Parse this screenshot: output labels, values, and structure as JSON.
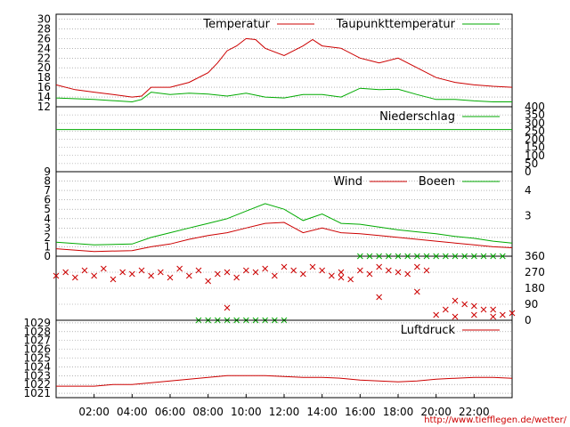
{
  "footer": {
    "url": "http://www.tiefflegen.de/wetter/"
  },
  "colors": {
    "red": "#cc0000",
    "green": "#00aa00",
    "grid": "#888888"
  },
  "chart_data": [
    {
      "id": "temperature",
      "type": "line",
      "ylim": [
        12,
        31
      ],
      "y_ticks": [
        "30",
        "28",
        "26",
        "24",
        "22",
        "20",
        "18",
        "16",
        "14",
        "12"
      ],
      "y_tick_values": [
        30,
        28,
        26,
        24,
        22,
        20,
        18,
        16,
        14,
        12
      ],
      "legend": [
        {
          "label": "Temperatur",
          "color": "#cc0000"
        },
        {
          "label": "Taupunkttemperatur",
          "color": "#00aa00"
        }
      ],
      "series": [
        {
          "name": "Temperatur",
          "color": "#cc0000",
          "x": [
            0,
            1,
            2,
            3,
            4,
            4.5,
            5,
            6,
            7,
            8,
            8.5,
            9,
            9.5,
            10,
            10.5,
            11,
            12,
            13,
            13.5,
            14,
            15,
            16,
            16.5,
            17,
            18,
            19,
            20,
            21,
            22,
            23,
            24
          ],
          "y": [
            16.5,
            15.5,
            15,
            14.5,
            14,
            14.2,
            16,
            16,
            17,
            19,
            21,
            23.5,
            24.5,
            26,
            25.8,
            24,
            22.5,
            24.5,
            25.8,
            24.5,
            24,
            22,
            21.5,
            21,
            22,
            20,
            18,
            17,
            16.5,
            16.2,
            16
          ]
        },
        {
          "name": "Taupunkttemperatur",
          "color": "#00aa00",
          "x": [
            0,
            2,
            4,
            4.5,
            5,
            6,
            7,
            8,
            9,
            10,
            11,
            12,
            13,
            14,
            15,
            16,
            17,
            18,
            19,
            20,
            21,
            22,
            23,
            24
          ],
          "y": [
            13.8,
            13.5,
            13,
            13.5,
            15,
            14.5,
            14.8,
            14.6,
            14.2,
            14.8,
            14,
            13.8,
            14.5,
            14.5,
            14,
            15.8,
            15.5,
            15.6,
            14.5,
            13.5,
            13.5,
            13.2,
            13,
            13
          ]
        }
      ]
    },
    {
      "id": "precipitation",
      "type": "line",
      "ylim": [
        0,
        400
      ],
      "y_ticks_right": [
        "400",
        "350",
        "300",
        "250",
        "200",
        "150",
        "100",
        "50",
        "0"
      ],
      "y_tick_values": [
        400,
        350,
        300,
        250,
        200,
        150,
        100,
        50,
        0
      ],
      "legend": [
        {
          "label": "Niederschlag",
          "color": "#00aa00"
        }
      ],
      "series": [
        {
          "name": "Niederschlag",
          "color": "#00aa00",
          "x": [
            0,
            24
          ],
          "y": [
            260,
            260
          ]
        }
      ]
    },
    {
      "id": "wind",
      "type": "line",
      "ylim": [
        0,
        9
      ],
      "y_ticks": [
        "9",
        "8",
        "7",
        "6",
        "5",
        "4",
        "3",
        "2",
        "1",
        "0"
      ],
      "y_tick_values": [
        9,
        8,
        7,
        6,
        5,
        4,
        3,
        2,
        1,
        0
      ],
      "y_ticks_right": [
        "4",
        "3"
      ],
      "y_tick_right_values": [
        7,
        4.3
      ],
      "legend": [
        {
          "label": "Wind",
          "color": "#cc0000"
        },
        {
          "label": "Boeen",
          "color": "#00aa00"
        }
      ],
      "series": [
        {
          "name": "Wind",
          "color": "#cc0000",
          "x": [
            0,
            2,
            4,
            5,
            6,
            7,
            8,
            9,
            10,
            11,
            12,
            13,
            14,
            15,
            16,
            17,
            18,
            19,
            20,
            21,
            22,
            23,
            24
          ],
          "y": [
            0.8,
            0.5,
            0.6,
            1,
            1.3,
            1.8,
            2.2,
            2.5,
            3,
            3.5,
            3.6,
            2.5,
            3,
            2.5,
            2.4,
            2.2,
            2,
            1.8,
            1.6,
            1.4,
            1.2,
            1,
            0.9
          ]
        },
        {
          "name": "Boeen",
          "color": "#00aa00",
          "x": [
            0,
            2,
            4,
            5,
            6,
            7,
            8,
            9,
            10,
            11,
            12,
            13,
            14,
            15,
            16,
            17,
            18,
            19,
            20,
            21,
            22,
            23,
            24
          ],
          "y": [
            1.5,
            1.2,
            1.3,
            2,
            2.5,
            3,
            3.5,
            4,
            4.8,
            5.6,
            5,
            3.8,
            4.5,
            3.5,
            3.4,
            3.1,
            2.8,
            2.6,
            2.4,
            2.1,
            1.9,
            1.6,
            1.4
          ]
        }
      ]
    },
    {
      "id": "wind-direction",
      "type": "scatter",
      "ylim": [
        0,
        360
      ],
      "y_ticks_right": [
        "360",
        "270",
        "180",
        "90",
        "0"
      ],
      "y_tick_values": [
        360,
        270,
        180,
        90,
        0
      ],
      "series": [
        {
          "name": "",
          "color": "#cc0000",
          "x": [
            0,
            0.5,
            1,
            1.5,
            2,
            2.5,
            3,
            3.5,
            4,
            4.5,
            5,
            5.5,
            6,
            6.5,
            7,
            7.5,
            8,
            8.5,
            9,
            9.5,
            10,
            10.5,
            11,
            11.5,
            12,
            12.5,
            13,
            13.5,
            14,
            14.5,
            15,
            15.5,
            16,
            16.5,
            17,
            17.5,
            18,
            18.5,
            19,
            19.5,
            20,
            20.5,
            21,
            21.5,
            22,
            22.5,
            23,
            23.5,
            24,
            9,
            15,
            17,
            19,
            21,
            22,
            23
          ],
          "y": [
            250,
            270,
            240,
            280,
            250,
            290,
            230,
            270,
            260,
            280,
            250,
            270,
            240,
            290,
            250,
            280,
            220,
            260,
            270,
            240,
            280,
            270,
            290,
            250,
            300,
            280,
            260,
            300,
            280,
            250,
            270,
            230,
            280,
            260,
            300,
            280,
            270,
            260,
            300,
            280,
            30,
            60,
            20,
            90,
            30,
            60,
            20,
            30,
            40,
            70,
            240,
            130,
            160,
            110,
            80,
            60
          ]
        },
        {
          "name": "",
          "color": "#00aa00",
          "x": [
            7.5,
            8,
            8.5,
            9,
            9.5,
            10,
            10.5,
            11,
            11.5,
            12,
            16,
            16.5,
            17,
            17.5,
            18,
            18.5,
            19,
            19.5,
            20,
            20.5,
            21,
            21.5,
            22,
            22.5,
            23,
            23.5
          ],
          "y": [
            0,
            0,
            0,
            0,
            0,
            0,
            0,
            0,
            0,
            0,
            360,
            360,
            360,
            360,
            360,
            360,
            360,
            360,
            360,
            360,
            360,
            360,
            360,
            360,
            360,
            360
          ]
        }
      ]
    },
    {
      "id": "pressure",
      "type": "line",
      "ylim": [
        1020.5,
        1029.3
      ],
      "y_ticks": [
        "1029",
        "1028",
        "1027",
        "1026",
        "1025",
        "1024",
        "1023",
        "1022",
        "1021"
      ],
      "y_tick_values": [
        1029,
        1028,
        1027,
        1026,
        1025,
        1024,
        1023,
        1022,
        1021
      ],
      "legend": [
        {
          "label": "Luftdruck",
          "color": "#cc0000"
        }
      ],
      "series": [
        {
          "name": "Luftdruck",
          "color": "#cc0000",
          "x": [
            0,
            2,
            3,
            4,
            5,
            6,
            7,
            8,
            9,
            10,
            11,
            12,
            13,
            14,
            15,
            16,
            17,
            18,
            19,
            20,
            21,
            22,
            23,
            24
          ],
          "y": [
            1021.8,
            1021.8,
            1022,
            1022,
            1022.2,
            1022.4,
            1022.6,
            1022.8,
            1023,
            1023,
            1023,
            1022.9,
            1022.8,
            1022.8,
            1022.7,
            1022.5,
            1022.4,
            1022.3,
            1022.4,
            1022.6,
            1022.7,
            1022.8,
            1022.8,
            1022.7
          ]
        }
      ]
    }
  ],
  "x_axis": {
    "ticks": [
      "02:00",
      "04:00",
      "06:00",
      "08:00",
      "10:00",
      "12:00",
      "14:00",
      "16:00",
      "18:00",
      "20:00",
      "22:00"
    ],
    "tick_values": [
      2,
      4,
      6,
      8,
      10,
      12,
      14,
      16,
      18,
      20,
      22
    ],
    "xlim": [
      0,
      24
    ]
  }
}
